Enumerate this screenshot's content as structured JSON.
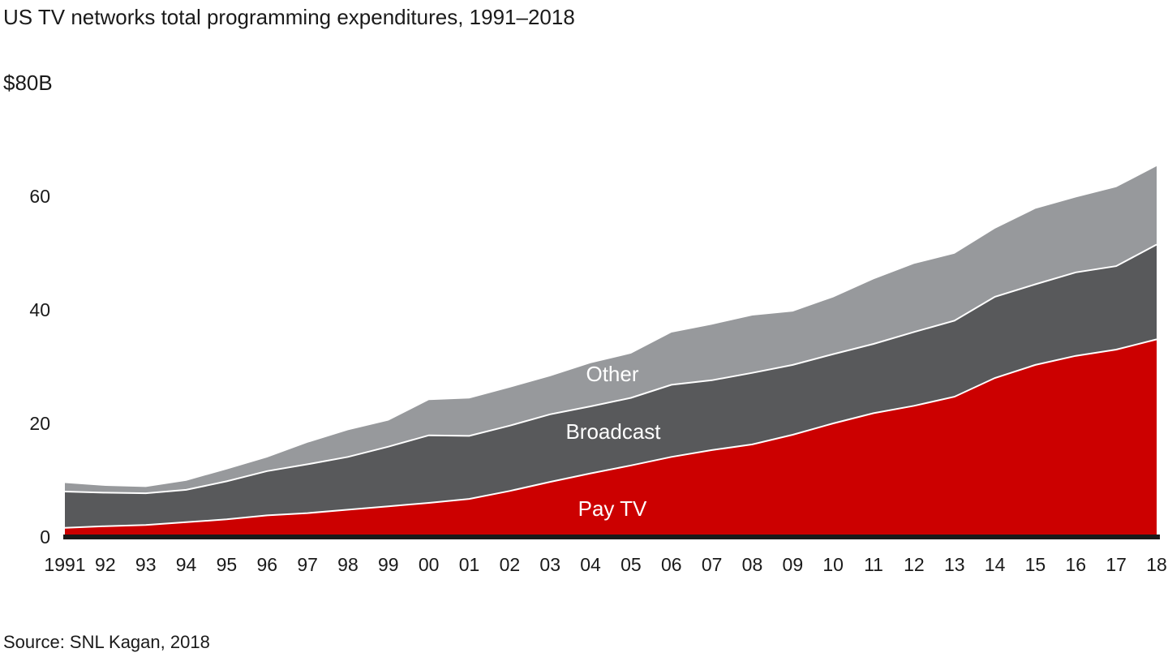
{
  "title": "US TV networks total programming expenditures, 1991–2018",
  "source": "Source: SNL Kagan, 2018",
  "y_axis": {
    "max_label": "$80B",
    "ticks": [
      {
        "label": "60",
        "value": 60
      },
      {
        "label": "40",
        "value": 40
      },
      {
        "label": "20",
        "value": 20
      },
      {
        "label": "0",
        "value": 0
      }
    ]
  },
  "colors": {
    "pay_tv": "#CC0000",
    "broadcast": "#58595B",
    "other": "#97999C",
    "axis_line": "#1A1A1A",
    "text": "#1A1A1A",
    "band_separator": "#FFFFFF",
    "area_label_text": "#FFFFFF"
  },
  "chart_data": {
    "type": "area",
    "stacked": true,
    "title": "US TV networks total programming expenditures, 1991–2018",
    "units": "billions USD",
    "ylim": [
      0,
      80
    ],
    "y_ticks": [
      0,
      20,
      40,
      60
    ],
    "y_axis_top_label": "$80B",
    "grid": false,
    "legend": "inline-area-labels",
    "x": [
      1991,
      1992,
      1993,
      1994,
      1995,
      1996,
      1997,
      1998,
      1999,
      2000,
      2001,
      2002,
      2003,
      2004,
      2005,
      2006,
      2007,
      2008,
      2009,
      2010,
      2011,
      2012,
      2013,
      2014,
      2015,
      2016,
      2017,
      2018
    ],
    "x_tick_labels": [
      "1991",
      "92",
      "93",
      "94",
      "95",
      "96",
      "97",
      "98",
      "99",
      "00",
      "01",
      "02",
      "03",
      "04",
      "05",
      "06",
      "07",
      "08",
      "09",
      "10",
      "11",
      "12",
      "13",
      "14",
      "15",
      "16",
      "17",
      "18"
    ],
    "series": [
      {
        "name": "Pay TV",
        "color": "#CC0000",
        "values": [
          1.6,
          1.9,
          2.1,
          2.6,
          3.1,
          3.8,
          4.2,
          4.8,
          5.4,
          6.0,
          6.7,
          8.1,
          9.7,
          11.2,
          12.6,
          14.1,
          15.3,
          16.3,
          18.0,
          20.0,
          21.8,
          23.1,
          24.7,
          28.0,
          30.3,
          31.9,
          33.0,
          34.8
        ]
      },
      {
        "name": "Broadcast",
        "color": "#58595B",
        "values": [
          6.4,
          5.9,
          5.6,
          5.7,
          6.7,
          7.8,
          8.6,
          9.3,
          10.5,
          11.9,
          11.1,
          11.5,
          11.9,
          11.8,
          11.9,
          12.7,
          12.3,
          12.6,
          12.3,
          12.2,
          12.2,
          13.0,
          13.4,
          14.3,
          14.2,
          14.7,
          14.7,
          16.7
        ]
      },
      {
        "name": "Other",
        "color": "#97999C",
        "values": [
          1.5,
          1.2,
          1.1,
          1.6,
          2.1,
          2.4,
          3.8,
          4.7,
          4.6,
          6.2,
          6.6,
          6.7,
          6.7,
          7.6,
          7.8,
          9.2,
          9.8,
          10.1,
          9.4,
          10.0,
          11.4,
          12.0,
          11.8,
          12.0,
          13.3,
          13.2,
          13.9,
          13.8
        ]
      }
    ]
  }
}
